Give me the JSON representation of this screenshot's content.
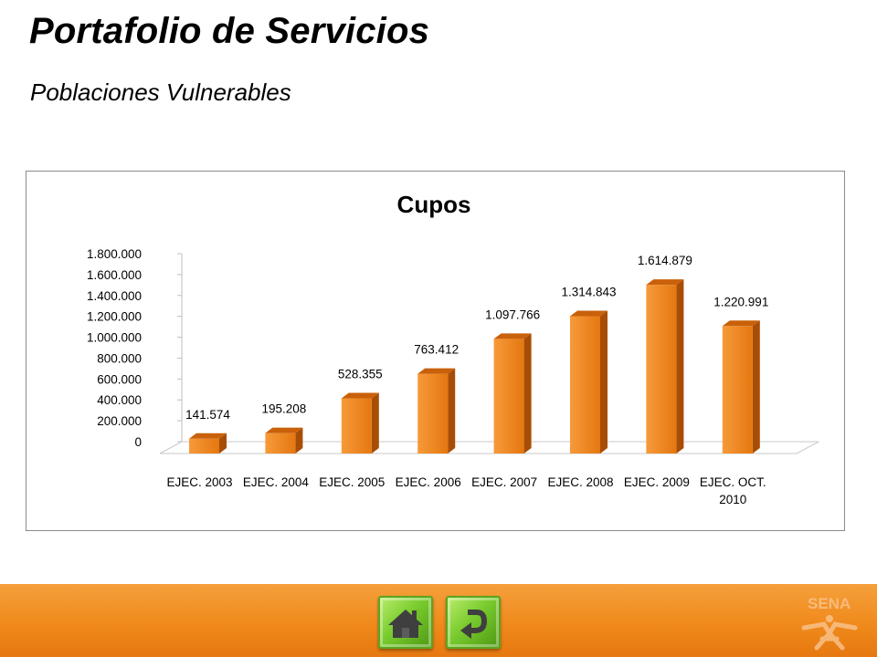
{
  "slide": {
    "title": "Portafolio de Servicios",
    "subtitle": "Poblaciones Vulnerables"
  },
  "chart_data": {
    "type": "bar",
    "title": "Cupos",
    "categories": [
      "EJEC. 2003",
      "EJEC. 2004",
      "EJEC. 2005",
      "EJEC. 2006",
      "EJEC. 2007",
      "EJEC. 2008",
      "EJEC. 2009",
      "EJEC. OCT. 2010"
    ],
    "values": [
      141574,
      195208,
      528355,
      763412,
      1097766,
      1314843,
      1614879,
      1220991
    ],
    "data_labels": [
      "141.574",
      "195.208",
      "528.355",
      "763.412",
      "1.097.766",
      "1.314.843",
      "1.614.879",
      "1.220.991"
    ],
    "ylim": [
      0,
      1800000
    ],
    "yticks": [
      0,
      200000,
      400000,
      600000,
      800000,
      1000000,
      1200000,
      1400000,
      1600000,
      1800000
    ],
    "ytick_labels": [
      "0",
      "200.000",
      "400.000",
      "600.000",
      "800.000",
      "1.000.000",
      "1.200.000",
      "1.400.000",
      "1.600.000",
      "1.800.000"
    ],
    "style": "3d-columns",
    "bar_color": "#f07e14",
    "grid": false,
    "legend": "none"
  },
  "footer": {
    "background_color": "#f08a1c",
    "home_icon": "home-icon",
    "back_icon": "return-arrow-icon",
    "logo_text": "SENA"
  }
}
